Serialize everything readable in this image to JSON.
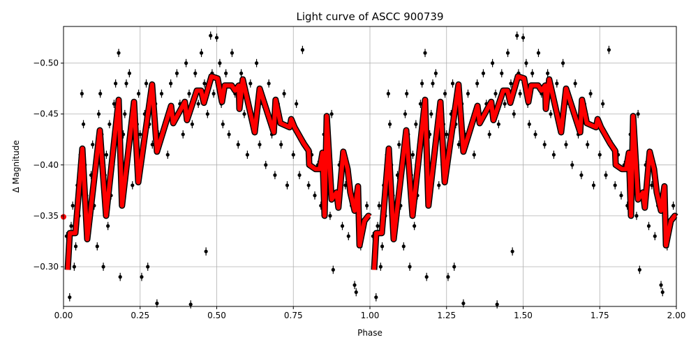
{
  "chart_data": {
    "type": "scatter",
    "title": "Light curve of ASCC 900739",
    "xlabel": "Phase",
    "ylabel": "Δ Magnitude",
    "xlim": [
      0,
      2
    ],
    "ylim": [
      -0.536,
      -0.261
    ],
    "y_inverted": true,
    "grid": true,
    "xticks": [
      0,
      0.25,
      0.5,
      0.75,
      1.0,
      1.25,
      1.5,
      1.75,
      2.0
    ],
    "xtick_labels": [
      "0.00",
      "0.25",
      "0.50",
      "0.75",
      "1.00",
      "1.25",
      "1.50",
      "1.75",
      "2.00"
    ],
    "yticks": [
      -0.5,
      -0.45,
      -0.4,
      -0.35,
      -0.3
    ],
    "ytick_labels": [
      "−0.50",
      "−0.45",
      "−0.40",
      "−0.35",
      "−0.30"
    ],
    "colors": {
      "points": "#000000",
      "model": "#ff0000",
      "model_edge": "#000000",
      "grid": "#b0b0b0"
    },
    "points_repeat_period": 1,
    "point_error": 0.004,
    "points": [
      [
        0.01,
        -0.33
      ],
      [
        0.015,
        -0.31
      ],
      [
        0.02,
        -0.27
      ],
      [
        0.025,
        -0.34
      ],
      [
        0.03,
        -0.36
      ],
      [
        0.035,
        -0.3
      ],
      [
        0.04,
        -0.32
      ],
      [
        0.045,
        -0.38
      ],
      [
        0.05,
        -0.35
      ],
      [
        0.055,
        -0.41
      ],
      [
        0.06,
        -0.47
      ],
      [
        0.065,
        -0.44
      ],
      [
        0.07,
        -0.4
      ],
      [
        0.075,
        -0.37
      ],
      [
        0.08,
        -0.33
      ],
      [
        0.09,
        -0.39
      ],
      [
        0.095,
        -0.42
      ],
      [
        0.1,
        -0.36
      ],
      [
        0.105,
        -0.4
      ],
      [
        0.11,
        -0.32
      ],
      [
        0.115,
        -0.45
      ],
      [
        0.12,
        -0.47
      ],
      [
        0.125,
        -0.43
      ],
      [
        0.13,
        -0.3
      ],
      [
        0.135,
        -0.39
      ],
      [
        0.14,
        -0.41
      ],
      [
        0.145,
        -0.34
      ],
      [
        0.15,
        -0.44
      ],
      [
        0.155,
        -0.37
      ],
      [
        0.16,
        -0.42
      ],
      [
        0.165,
        -0.46
      ],
      [
        0.17,
        -0.48
      ],
      [
        0.175,
        -0.44
      ],
      [
        0.18,
        -0.51
      ],
      [
        0.185,
        -0.29
      ],
      [
        0.19,
        -0.4
      ],
      [
        0.195,
        -0.43
      ],
      [
        0.2,
        -0.45
      ],
      [
        0.205,
        -0.48
      ],
      [
        0.21,
        -0.42
      ],
      [
        0.215,
        -0.49
      ],
      [
        0.22,
        -0.44
      ],
      [
        0.225,
        -0.38
      ],
      [
        0.23,
        -0.46
      ],
      [
        0.235,
        -0.41
      ],
      [
        0.24,
        -0.44
      ],
      [
        0.245,
        -0.47
      ],
      [
        0.25,
        -0.43
      ],
      [
        0.255,
        -0.29
      ],
      [
        0.26,
        -0.41
      ],
      [
        0.265,
        -0.45
      ],
      [
        0.27,
        -0.48
      ],
      [
        0.275,
        -0.3
      ],
      [
        0.28,
        -0.44
      ],
      [
        0.29,
        -0.42
      ],
      [
        0.3,
        -0.46
      ],
      [
        0.305,
        -0.264
      ],
      [
        0.31,
        -0.43
      ],
      [
        0.32,
        -0.47
      ],
      [
        0.33,
        -0.44
      ],
      [
        0.34,
        -0.41
      ],
      [
        0.35,
        -0.48
      ],
      [
        0.36,
        -0.45
      ],
      [
        0.37,
        -0.49
      ],
      [
        0.38,
        -0.46
      ],
      [
        0.39,
        -0.43
      ],
      [
        0.4,
        -0.5
      ],
      [
        0.41,
        -0.47
      ],
      [
        0.415,
        -0.263
      ],
      [
        0.42,
        -0.44
      ],
      [
        0.43,
        -0.49
      ],
      [
        0.44,
        -0.46
      ],
      [
        0.45,
        -0.51
      ],
      [
        0.46,
        -0.48
      ],
      [
        0.465,
        -0.315
      ],
      [
        0.47,
        -0.45
      ],
      [
        0.48,
        -0.527
      ],
      [
        0.485,
        -0.49
      ],
      [
        0.49,
        -0.47
      ],
      [
        0.5,
        -0.525
      ],
      [
        0.51,
        -0.5
      ],
      [
        0.515,
        -0.46
      ],
      [
        0.52,
        -0.44
      ],
      [
        0.53,
        -0.49
      ],
      [
        0.54,
        -0.43
      ],
      [
        0.55,
        -0.51
      ],
      [
        0.56,
        -0.47
      ],
      [
        0.57,
        -0.42
      ],
      [
        0.58,
        -0.49
      ],
      [
        0.59,
        -0.45
      ],
      [
        0.6,
        -0.41
      ],
      [
        0.61,
        -0.48
      ],
      [
        0.62,
        -0.44
      ],
      [
        0.63,
        -0.5
      ],
      [
        0.64,
        -0.42
      ],
      [
        0.65,
        -0.46
      ],
      [
        0.66,
        -0.4
      ],
      [
        0.67,
        -0.48
      ],
      [
        0.68,
        -0.43
      ],
      [
        0.69,
        -0.39
      ],
      [
        0.7,
        -0.46
      ],
      [
        0.71,
        -0.42
      ],
      [
        0.72,
        -0.47
      ],
      [
        0.73,
        -0.38
      ],
      [
        0.74,
        -0.44
      ],
      [
        0.75,
        -0.41
      ],
      [
        0.76,
        -0.46
      ],
      [
        0.77,
        -0.39
      ],
      [
        0.78,
        -0.513
      ],
      [
        0.79,
        -0.42
      ],
      [
        0.8,
        -0.38
      ],
      [
        0.81,
        -0.41
      ],
      [
        0.82,
        -0.37
      ],
      [
        0.83,
        -0.4
      ],
      [
        0.84,
        -0.36
      ],
      [
        0.85,
        -0.43
      ],
      [
        0.86,
        -0.38
      ],
      [
        0.87,
        -0.35
      ],
      [
        0.875,
        -0.45
      ],
      [
        0.88,
        -0.297
      ],
      [
        0.89,
        -0.37
      ],
      [
        0.9,
        -0.4
      ],
      [
        0.91,
        -0.34
      ],
      [
        0.92,
        -0.38
      ],
      [
        0.93,
        -0.33
      ],
      [
        0.94,
        -0.36
      ],
      [
        0.95,
        -0.282
      ],
      [
        0.955,
        -0.275
      ],
      [
        0.96,
        -0.35
      ],
      [
        0.97,
        -0.32
      ],
      [
        0.98,
        -0.34
      ],
      [
        0.99,
        -0.36
      ]
    ],
    "model_repeat_period": 1,
    "model": [
      [
        0.0137,
        -0.297
      ],
      [
        0.0205,
        -0.333
      ],
      [
        0.0387,
        -0.333
      ],
      [
        0.0615,
        -0.416
      ],
      [
        0.0774,
        -0.327
      ],
      [
        0.1185,
        -0.434
      ],
      [
        0.139,
        -0.35
      ],
      [
        0.18,
        -0.464
      ],
      [
        0.191,
        -0.36
      ],
      [
        0.23,
        -0.462
      ],
      [
        0.244,
        -0.383
      ],
      [
        0.289,
        -0.479
      ],
      [
        0.305,
        -0.413
      ],
      [
        0.351,
        -0.458
      ],
      [
        0.358,
        -0.441
      ],
      [
        0.396,
        -0.462
      ],
      [
        0.403,
        -0.444
      ],
      [
        0.435,
        -0.473
      ],
      [
        0.449,
        -0.473
      ],
      [
        0.458,
        -0.461
      ],
      [
        0.483,
        -0.487
      ],
      [
        0.503,
        -0.485
      ],
      [
        0.517,
        -0.462
      ],
      [
        0.526,
        -0.478
      ],
      [
        0.549,
        -0.478
      ],
      [
        0.56,
        -0.473
      ],
      [
        0.572,
        -0.478
      ],
      [
        0.574,
        -0.455
      ],
      [
        0.585,
        -0.484
      ],
      [
        0.624,
        -0.432
      ],
      [
        0.64,
        -0.475
      ],
      [
        0.686,
        -0.432
      ],
      [
        0.692,
        -0.464
      ],
      [
        0.708,
        -0.441
      ],
      [
        0.738,
        -0.437
      ],
      [
        0.743,
        -0.445
      ],
      [
        0.754,
        -0.437
      ],
      [
        0.784,
        -0.421
      ],
      [
        0.8,
        -0.414
      ],
      [
        0.802,
        -0.4
      ],
      [
        0.822,
        -0.396
      ],
      [
        0.836,
        -0.396
      ],
      [
        0.845,
        -0.412
      ],
      [
        0.852,
        -0.35
      ],
      [
        0.859,
        -0.448
      ],
      [
        0.875,
        -0.366
      ],
      [
        0.891,
        -0.373
      ],
      [
        0.897,
        -0.358
      ],
      [
        0.913,
        -0.413
      ],
      [
        0.927,
        -0.396
      ],
      [
        0.936,
        -0.373
      ],
      [
        0.95,
        -0.355
      ],
      [
        0.961,
        -0.379
      ],
      [
        0.966,
        -0.321
      ],
      [
        0.982,
        -0.345
      ],
      [
        0.995,
        -0.35
      ],
      [
        1.0,
        -0.349
      ]
    ]
  }
}
